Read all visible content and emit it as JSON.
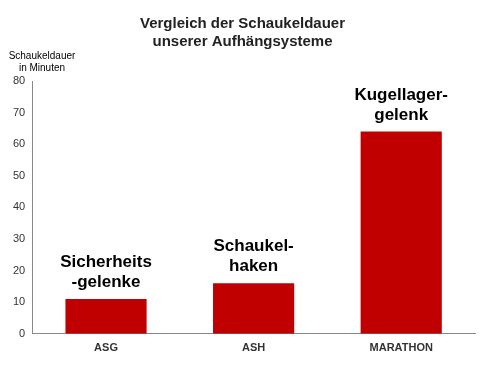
{
  "chart_data": {
    "type": "bar",
    "title": [
      "Vergleich der Schaukeldauer",
      "unserer Aufhängsysteme"
    ],
    "y_label": [
      "Schaukeldauer",
      "in Minuten"
    ],
    "categories": [
      "ASG",
      "ASH",
      "MARATHON"
    ],
    "values": [
      11,
      16,
      64
    ],
    "annotations": [
      [
        "Sicherheits",
        "-gelenke"
      ],
      [
        "Schaukel-",
        "haken"
      ],
      [
        "Kugellager-",
        "gelenk"
      ]
    ],
    "color": "#c00000",
    "ylim": [
      0,
      80
    ],
    "yticks": [
      0,
      10,
      20,
      30,
      40,
      50,
      60,
      70,
      80
    ],
    "grid": false
  }
}
